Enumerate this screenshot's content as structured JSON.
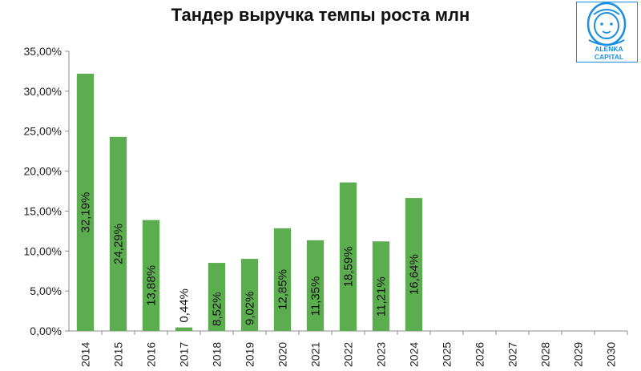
{
  "chart_data": {
    "type": "bar",
    "title": "Тандер выручка темпы роста млн",
    "categories": [
      "2014",
      "2015",
      "2016",
      "2017",
      "2018",
      "2019",
      "2020",
      "2021",
      "2022",
      "2023",
      "2024",
      "2025",
      "2026",
      "2027",
      "2028",
      "2029",
      "2030"
    ],
    "values": [
      32.19,
      24.29,
      13.88,
      0.44,
      8.52,
      9.02,
      12.85,
      11.35,
      18.59,
      11.21,
      16.64,
      null,
      null,
      null,
      null,
      null,
      null
    ],
    "data_labels": [
      "32,19%",
      "24,29%",
      "13,88%",
      "0,44%",
      "8,52%",
      "9,02%",
      "12,85%",
      "11,35%",
      "18,59%",
      "11,21%",
      "16,64%",
      "",
      "",
      "",
      "",
      "",
      ""
    ],
    "y_ticks": [
      "0,00%",
      "5,00%",
      "10,00%",
      "15,00%",
      "20,00%",
      "25,00%",
      "30,00%",
      "35,00%"
    ],
    "ylim": [
      0,
      35
    ],
    "xlabel": "",
    "ylabel": "",
    "grid": false,
    "bar_color": "#5cad4f",
    "legend": false
  },
  "logo": {
    "line1": "ALENKA",
    "line2": "CAPITAL",
    "color": "#1a8fe0"
  }
}
